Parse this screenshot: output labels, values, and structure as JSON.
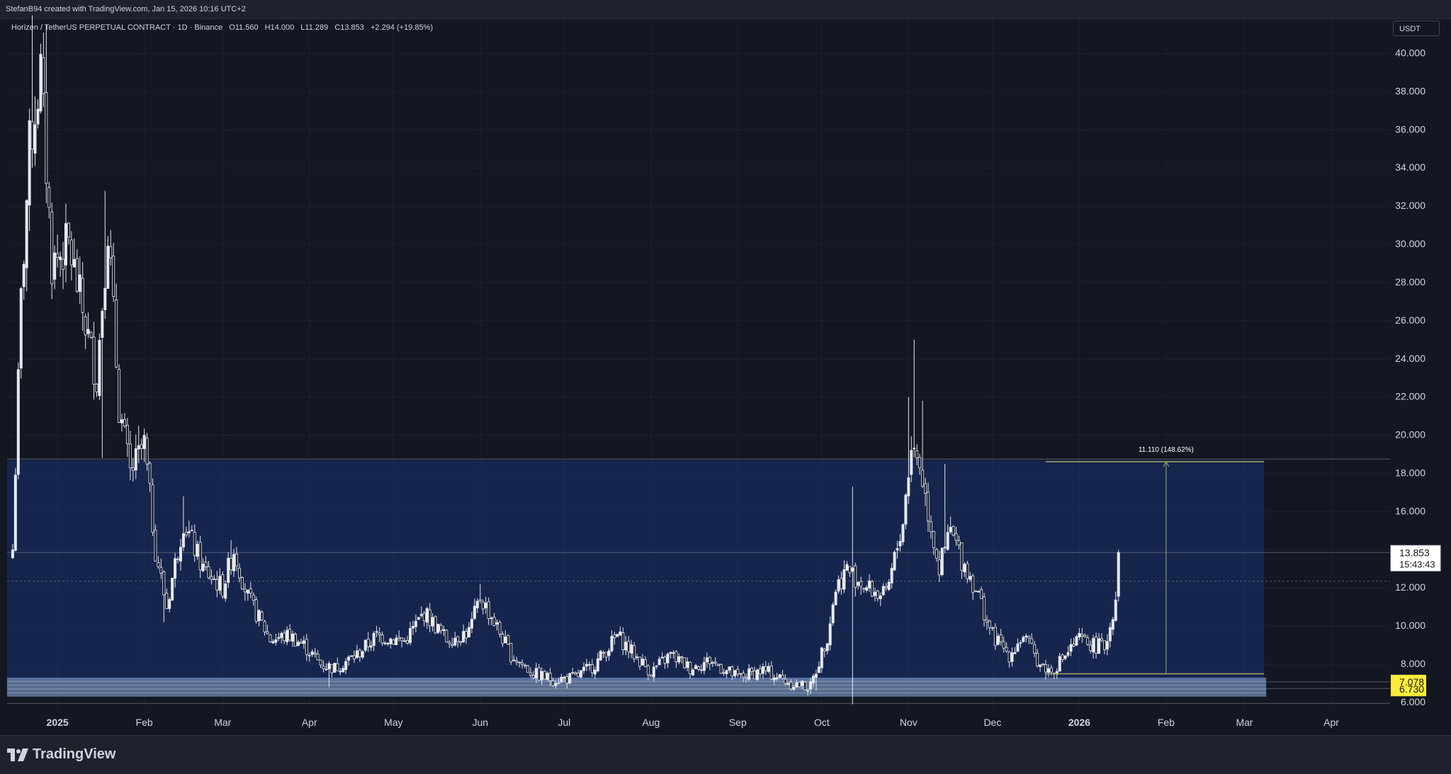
{
  "header": {
    "attribution": "StefanB94 created with TradingView.com, Jan 15, 2026 10:16 UTC+2"
  },
  "symbol": {
    "name": "Horizen / TetherUS PERPETUAL CONTRACT · 1D · Binance",
    "open": "O11.560",
    "high": "H14.000",
    "low": "L11.289",
    "close": "C13.853",
    "change": "+2.294 (+19.85%)",
    "currency": "USDT"
  },
  "footer": {
    "brand": "TradingView"
  },
  "colors": {
    "background": "#131722",
    "grid": "#1d2230",
    "candle": "#e6e9ef",
    "zone_fill": "#1a3a8a",
    "support_fill": "#8fb2e8",
    "price_label_bg": "#ffffff",
    "support_label_bg": "#ffeb3b",
    "measure_line": "#a6a86a"
  },
  "chart_data": {
    "type": "candlestick",
    "title": "Horizen / TetherUS PERPETUAL CONTRACT · 1D · Binance",
    "y_range": [
      5.7,
      41.8
    ],
    "y_ticks": [
      "8.000",
      "10.000",
      "12.000",
      "14.000",
      "16.000",
      "18.000",
      "20.000",
      "22.000",
      "24.000",
      "26.000",
      "28.000",
      "30.000",
      "32.000",
      "34.000",
      "36.000",
      "38.000",
      "40.000"
    ],
    "x_range": [
      "2024-12-14",
      "2026-04-22"
    ],
    "x_labels": [
      {
        "date": "2025-01-01",
        "label": "2025",
        "bold": true
      },
      {
        "date": "2025-02-01",
        "label": "Feb",
        "bold": false
      },
      {
        "date": "2025-03-01",
        "label": "Mar",
        "bold": false
      },
      {
        "date": "2025-04-01",
        "label": "Apr",
        "bold": false
      },
      {
        "date": "2025-05-01",
        "label": "May",
        "bold": false
      },
      {
        "date": "2025-06-01",
        "label": "Jun",
        "bold": false
      },
      {
        "date": "2025-07-01",
        "label": "Jul",
        "bold": false
      },
      {
        "date": "2025-08-01",
        "label": "Aug",
        "bold": false
      },
      {
        "date": "2025-09-01",
        "label": "Sep",
        "bold": false
      },
      {
        "date": "2025-10-01",
        "label": "Oct",
        "bold": false
      },
      {
        "date": "2025-11-01",
        "label": "Nov",
        "bold": false
      },
      {
        "date": "2025-12-01",
        "label": "Dec",
        "bold": false
      },
      {
        "date": "2026-01-01",
        "label": "2026",
        "bold": true
      },
      {
        "date": "2026-02-01",
        "label": "Feb",
        "bold": false
      },
      {
        "date": "2026-03-01",
        "label": "Mar",
        "bold": false
      },
      {
        "date": "2026-04-01",
        "label": "Apr",
        "bold": false
      }
    ],
    "price_path": [
      [
        "2024-12-16",
        14.0
      ],
      [
        "2024-12-19",
        27.0
      ],
      [
        "2024-12-22",
        35.0
      ],
      [
        "2024-12-26",
        39.0
      ],
      [
        "2024-12-30",
        29.0
      ],
      [
        "2025-01-05",
        30.0
      ],
      [
        "2025-01-10",
        26.5
      ],
      [
        "2025-01-15",
        23.0
      ],
      [
        "2025-01-19",
        31.0
      ],
      [
        "2025-01-23",
        21.5
      ],
      [
        "2025-01-27",
        18.0
      ],
      [
        "2025-02-01",
        19.5
      ],
      [
        "2025-02-05",
        14.0
      ],
      [
        "2025-02-09",
        11.0
      ],
      [
        "2025-02-15",
        15.5
      ],
      [
        "2025-02-22",
        13.0
      ],
      [
        "2025-03-01",
        12.0
      ],
      [
        "2025-03-05",
        14.0
      ],
      [
        "2025-03-10",
        11.5
      ],
      [
        "2025-03-18",
        9.3
      ],
      [
        "2025-03-25",
        9.5
      ],
      [
        "2025-03-30",
        9.0
      ],
      [
        "2025-04-05",
        8.0
      ],
      [
        "2025-04-10",
        7.8
      ],
      [
        "2025-04-18",
        8.5
      ],
      [
        "2025-04-25",
        9.5
      ],
      [
        "2025-05-05",
        9.2
      ],
      [
        "2025-05-12",
        10.7
      ],
      [
        "2025-05-20",
        9.3
      ],
      [
        "2025-05-28",
        9.7
      ],
      [
        "2025-06-01",
        11.5
      ],
      [
        "2025-06-05",
        10.5
      ],
      [
        "2025-06-12",
        8.5
      ],
      [
        "2025-06-20",
        7.5
      ],
      [
        "2025-06-27",
        7.2
      ],
      [
        "2025-07-05",
        7.3
      ],
      [
        "2025-07-12",
        8.0
      ],
      [
        "2025-07-20",
        9.5
      ],
      [
        "2025-07-26",
        8.5
      ],
      [
        "2025-08-01",
        7.6
      ],
      [
        "2025-08-08",
        8.5
      ],
      [
        "2025-08-15",
        7.8
      ],
      [
        "2025-08-22",
        8.2
      ],
      [
        "2025-09-01",
        7.3
      ],
      [
        "2025-09-10",
        7.7
      ],
      [
        "2025-09-20",
        7.0
      ],
      [
        "2025-09-27",
        6.8
      ],
      [
        "2025-10-03",
        9.5
      ],
      [
        "2025-10-06",
        12.0
      ],
      [
        "2025-10-10",
        13.0
      ],
      [
        "2025-10-17",
        12.0
      ],
      [
        "2025-10-24",
        11.5
      ],
      [
        "2025-10-30",
        15.5
      ],
      [
        "2025-11-02",
        19.5
      ],
      [
        "2025-11-05",
        18.5
      ],
      [
        "2025-11-08",
        16.0
      ],
      [
        "2025-11-12",
        13.0
      ],
      [
        "2025-11-16",
        15.0
      ],
      [
        "2025-11-20",
        13.5
      ],
      [
        "2025-11-25",
        12.0
      ],
      [
        "2025-12-01",
        9.5
      ],
      [
        "2025-12-07",
        8.5
      ],
      [
        "2025-12-12",
        9.5
      ],
      [
        "2025-12-18",
        8.0
      ],
      [
        "2025-12-22",
        7.6
      ],
      [
        "2025-12-27",
        8.5
      ],
      [
        "2026-01-01",
        9.3
      ],
      [
        "2026-01-06",
        9.0
      ],
      [
        "2026-01-10",
        8.9
      ],
      [
        "2026-01-12",
        10.0
      ],
      [
        "2026-01-14",
        11.5
      ],
      [
        "2026-01-15",
        13.853
      ]
    ],
    "price_spikes": [
      [
        "2024-12-23",
        42.0
      ],
      [
        "2024-12-28",
        41.5
      ],
      [
        "2025-01-18",
        32.8
      ],
      [
        "2025-01-30",
        20.5
      ],
      [
        "2025-02-15",
        16.8
      ],
      [
        "2025-03-04",
        14.5
      ],
      [
        "2025-06-01",
        12.2
      ],
      [
        "2025-10-12",
        17.3
      ],
      [
        "2025-11-01",
        22.0
      ],
      [
        "2025-11-03",
        25.0
      ],
      [
        "2025-11-06",
        21.8
      ],
      [
        "2025-11-14",
        18.5
      ]
    ],
    "price_dips": [
      [
        "2024-12-15",
        13.5
      ],
      [
        "2025-01-17",
        18.8
      ],
      [
        "2025-02-08",
        10.2
      ],
      [
        "2025-04-08",
        6.8
      ],
      [
        "2025-09-29",
        6.6
      ],
      [
        "2025-10-12",
        5.9
      ],
      [
        "2025-12-20",
        7.2
      ]
    ],
    "zones": [
      {
        "name": "resistance-zone",
        "from": "2024-12-14",
        "to": "2026-03-08",
        "top": 18.7,
        "bottom": 7.1
      },
      {
        "name": "support-zone",
        "from": "2024-12-14",
        "to": "2026-03-08",
        "top": 7.3,
        "bottom": 6.3
      }
    ],
    "hlines": [
      {
        "name": "range-top-line",
        "price": 18.75
      },
      {
        "name": "range-bottom-line",
        "price": 5.95
      },
      {
        "name": "last-price-line",
        "price": 13.853
      },
      {
        "name": "prev-close-line",
        "price": 12.35,
        "dashed": true
      },
      {
        "name": "support-upper-line",
        "price": 7.078
      },
      {
        "name": "support-lower-line",
        "price": 6.73
      }
    ],
    "measure": {
      "from_date": "2025-12-20",
      "to_date": "2026-03-08",
      "mid_date": "2026-02-01",
      "low": 7.5,
      "high": 18.61,
      "label": "11.110 (148.62%)"
    },
    "last_price": {
      "price": 13.853,
      "label": "13.853",
      "countdown": "15:43:43"
    },
    "support_labels": [
      {
        "price": 7.078,
        "label": "7.078"
      },
      {
        "price": 6.73,
        "label": "6.730"
      }
    ],
    "hidden_tick_label": "6.000"
  }
}
